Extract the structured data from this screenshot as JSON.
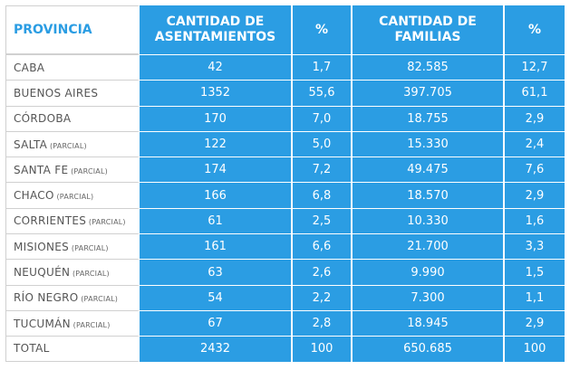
{
  "header": {
    "provincia": "PROVINCIA",
    "asentamientos": "CANTIDAD DE ASENTAMIENTOS",
    "pct1": "%",
    "familias": "CANTIDAD DE FAMILIAS",
    "pct2": "%"
  },
  "rows": [
    {
      "name": "CABA",
      "qualifier": "",
      "asentamientos": "42",
      "pct_asent": "1,7",
      "familias": "82.585",
      "pct_fam": "12,7"
    },
    {
      "name": "BUENOS AIRES",
      "qualifier": "",
      "asentamientos": "1352",
      "pct_asent": "55,6",
      "familias": "397.705",
      "pct_fam": "61,1"
    },
    {
      "name": "CÓRDOBA",
      "qualifier": "",
      "asentamientos": "170",
      "pct_asent": "7,0",
      "familias": "18.755",
      "pct_fam": "2,9"
    },
    {
      "name": "SALTA",
      "qualifier": "(PARCIAL)",
      "asentamientos": "122",
      "pct_asent": "5,0",
      "familias": "15.330",
      "pct_fam": "2,4"
    },
    {
      "name": "SANTA FE",
      "qualifier": "(PARCIAL)",
      "asentamientos": "174",
      "pct_asent": "7,2",
      "familias": "49.475",
      "pct_fam": "7,6"
    },
    {
      "name": "CHACO",
      "qualifier": "(PARCIAL)",
      "asentamientos": "166",
      "pct_asent": "6,8",
      "familias": "18.570",
      "pct_fam": "2,9"
    },
    {
      "name": "CORRIENTES",
      "qualifier": "(PARCIAL)",
      "asentamientos": "61",
      "pct_asent": "2,5",
      "familias": "10.330",
      "pct_fam": "1,6"
    },
    {
      "name": "MISIONES",
      "qualifier": "(PARCIAL)",
      "asentamientos": "161",
      "pct_asent": "6,6",
      "familias": "21.700",
      "pct_fam": "3,3"
    },
    {
      "name": "NEUQUÉN",
      "qualifier": "(PARCIAL)",
      "asentamientos": "63",
      "pct_asent": "2,6",
      "familias": "9.990",
      "pct_fam": "1,5"
    },
    {
      "name": "RÍO NEGRO",
      "qualifier": "(PARCIAL)",
      "asentamientos": "54",
      "pct_asent": "2,2",
      "familias": "7.300",
      "pct_fam": "1,1"
    },
    {
      "name": "TUCUMÁN",
      "qualifier": "(PARCIAL)",
      "asentamientos": "67",
      "pct_asent": "2,8",
      "familias": "18.945",
      "pct_fam": "2,9"
    },
    {
      "name": "TOTAL",
      "qualifier": "",
      "asentamientos": "2432",
      "pct_asent": "100",
      "familias": "650.685",
      "pct_fam": "100"
    }
  ],
  "colors": {
    "accent": "#2b9de3",
    "row_label_text": "#555555",
    "background": "#ffffff"
  }
}
